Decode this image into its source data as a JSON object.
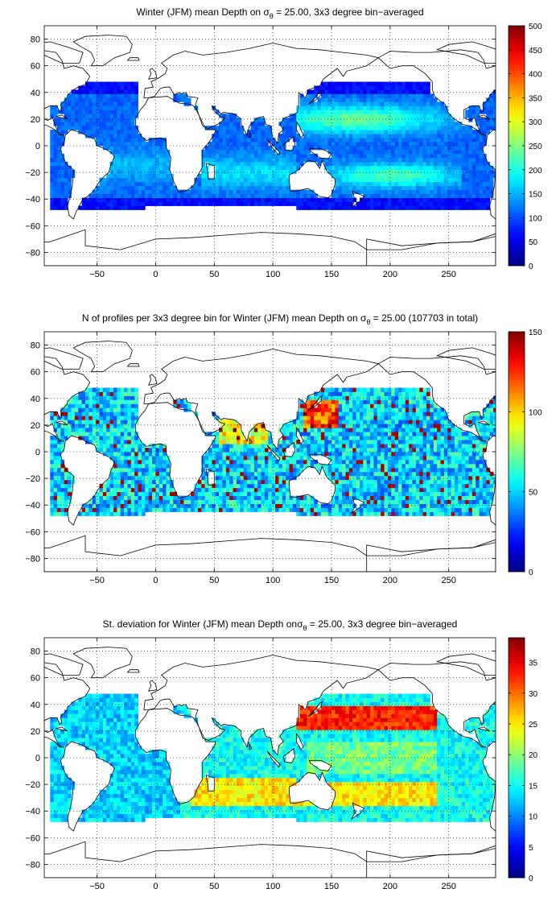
{
  "panels": [
    {
      "title_pre": "Winter (JFM) mean Depth on σ",
      "title_sub": "θ",
      "title_post": " = 25.00, 3x3 degree bin−averaged",
      "colorbar_ticks": [
        "0",
        "50",
        "100",
        "150",
        "200",
        "250",
        "300",
        "350",
        "400",
        "450",
        "500"
      ]
    },
    {
      "title_pre": "N of profiles per 3x3 degree bin for Winter (JFM) mean Depth on σ",
      "title_sub": "θ",
      "title_post": " = 25.00 (107703 in total)",
      "colorbar_ticks": [
        "0",
        "50",
        "100",
        "150"
      ]
    },
    {
      "title_pre": "St. deviation for Winter (JFM) mean Depth onσ",
      "title_sub": "θ",
      "title_post": " = 25.00, 3x3 degree bin−averaged",
      "colorbar_ticks": [
        "0",
        "5",
        "10",
        "15",
        "20",
        "25",
        "30",
        "35"
      ]
    }
  ],
  "chart_data": [
    {
      "type": "heatmap",
      "title": "Winter (JFM) mean Depth on σθ = 25.00, 3x3 degree bin−averaged",
      "xlim": [
        -95,
        290
      ],
      "ylim": [
        -90,
        90
      ],
      "x_ticks": [
        -50,
        0,
        50,
        100,
        150,
        200,
        250
      ],
      "y_ticks": [
        80,
        60,
        40,
        20,
        0,
        -20,
        -40,
        -60,
        -80
      ],
      "grid": true,
      "colormap": "jet",
      "clim": [
        0,
        500
      ],
      "colorbar_ticks": [
        0,
        50,
        100,
        150,
        200,
        250,
        300,
        350,
        400,
        450,
        500
      ]
    },
    {
      "type": "heatmap",
      "title": "N of profiles per 3x3 degree bin for Winter (JFM) mean Depth on σθ = 25.00 (107703 in total)",
      "xlim": [
        -95,
        290
      ],
      "ylim": [
        -90,
        90
      ],
      "x_ticks": [
        -50,
        0,
        50,
        100,
        150,
        200,
        250
      ],
      "y_ticks": [
        80,
        60,
        40,
        20,
        0,
        -20,
        -40,
        -60,
        -80
      ],
      "grid": true,
      "colormap": "jet",
      "clim": [
        0,
        150
      ],
      "colorbar_ticks": [
        0,
        50,
        100,
        150
      ]
    },
    {
      "type": "heatmap",
      "title": "St. deviation for Winter (JFM) mean Depth onσθ = 25.00, 3x3 degree bin−averaged",
      "xlim": [
        -95,
        290
      ],
      "ylim": [
        -90,
        90
      ],
      "x_ticks": [
        -50,
        0,
        50,
        100,
        150,
        200,
        250
      ],
      "y_ticks": [
        80,
        60,
        40,
        20,
        0,
        -20,
        -40,
        -60,
        -80
      ],
      "grid": true,
      "colormap": "jet",
      "clim": [
        0,
        39
      ],
      "colorbar_ticks": [
        0,
        5,
        10,
        15,
        20,
        25,
        30,
        35
      ]
    }
  ]
}
